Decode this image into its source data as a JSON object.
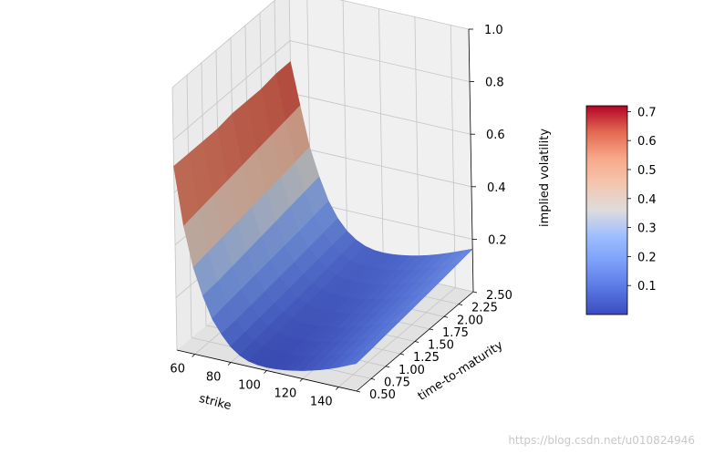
{
  "chart_data": {
    "type": "surface3d",
    "title": "",
    "xlabel": "strike",
    "ylabel": "time-to-maturity",
    "zlabel": "implied volatility",
    "xlim": [
      50,
      150
    ],
    "ylim": [
      0.5,
      2.5
    ],
    "zlim": [
      0.0,
      1.0
    ],
    "x_ticks": [
      60,
      80,
      100,
      120,
      140
    ],
    "x_tick_labels": [
      "60",
      "80",
      "100",
      "120",
      "140"
    ],
    "y_ticks": [
      0.5,
      0.75,
      1.0,
      1.25,
      1.5,
      1.75,
      2.0,
      2.25,
      2.5
    ],
    "y_tick_labels": [
      "0.50",
      "0.75",
      "1.00",
      "1.25",
      "1.50",
      "1.75",
      "2.00",
      "2.25",
      "2.50"
    ],
    "z_ticks": [
      0.2,
      0.4,
      0.6,
      0.8,
      1.0
    ],
    "z_tick_labels": [
      "0.2",
      "0.4",
      "0.6",
      "0.8",
      "1.0"
    ],
    "colormap": "coolwarm",
    "colorbar": {
      "min": 0.0,
      "max": 0.72,
      "ticks": [
        0.1,
        0.2,
        0.3,
        0.4,
        0.5,
        0.6,
        0.7
      ],
      "tick_labels": [
        "0.1",
        "0.2",
        "0.3",
        "0.4",
        "0.5",
        "0.6",
        "0.7"
      ]
    },
    "grid": true,
    "surface": {
      "strike": [
        50,
        55,
        60,
        65,
        70,
        75,
        80,
        85,
        90,
        95,
        100,
        105,
        110,
        115,
        120,
        125,
        130,
        135,
        140,
        145,
        150
      ],
      "maturity": [
        0.5,
        0.75,
        1.0,
        1.25,
        1.5,
        1.75,
        2.0,
        2.25,
        2.5
      ],
      "implied_volatility": [
        [
          0.7,
          0.48,
          0.33,
          0.23,
          0.15,
          0.1,
          0.06,
          0.035,
          0.02,
          0.014,
          0.012,
          0.014,
          0.018,
          0.024,
          0.031,
          0.04,
          0.05,
          0.062,
          0.075,
          0.09,
          0.105
        ],
        [
          0.7,
          0.49,
          0.34,
          0.235,
          0.16,
          0.105,
          0.068,
          0.043,
          0.028,
          0.02,
          0.018,
          0.02,
          0.024,
          0.03,
          0.038,
          0.047,
          0.058,
          0.07,
          0.083,
          0.097,
          0.11
        ],
        [
          0.7,
          0.5,
          0.35,
          0.245,
          0.168,
          0.112,
          0.075,
          0.05,
          0.035,
          0.027,
          0.025,
          0.027,
          0.031,
          0.037,
          0.045,
          0.054,
          0.065,
          0.077,
          0.09,
          0.104,
          0.118
        ],
        [
          0.7,
          0.51,
          0.36,
          0.255,
          0.176,
          0.12,
          0.082,
          0.057,
          0.042,
          0.034,
          0.032,
          0.034,
          0.038,
          0.044,
          0.052,
          0.061,
          0.072,
          0.084,
          0.097,
          0.111,
          0.125
        ],
        [
          0.71,
          0.52,
          0.37,
          0.265,
          0.184,
          0.128,
          0.09,
          0.064,
          0.049,
          0.041,
          0.039,
          0.041,
          0.045,
          0.051,
          0.059,
          0.068,
          0.079,
          0.091,
          0.104,
          0.118,
          0.132
        ],
        [
          0.71,
          0.53,
          0.38,
          0.275,
          0.192,
          0.136,
          0.098,
          0.072,
          0.056,
          0.048,
          0.046,
          0.048,
          0.052,
          0.058,
          0.066,
          0.075,
          0.086,
          0.098,
          0.111,
          0.125,
          0.139
        ],
        [
          0.71,
          0.54,
          0.39,
          0.285,
          0.2,
          0.144,
          0.106,
          0.08,
          0.064,
          0.056,
          0.054,
          0.056,
          0.06,
          0.066,
          0.074,
          0.083,
          0.094,
          0.106,
          0.119,
          0.133,
          0.147
        ],
        [
          0.72,
          0.55,
          0.4,
          0.295,
          0.21,
          0.153,
          0.114,
          0.088,
          0.072,
          0.064,
          0.062,
          0.064,
          0.068,
          0.074,
          0.082,
          0.091,
          0.102,
          0.114,
          0.127,
          0.141,
          0.155
        ],
        [
          0.72,
          0.56,
          0.41,
          0.305,
          0.22,
          0.162,
          0.122,
          0.096,
          0.08,
          0.072,
          0.07,
          0.072,
          0.076,
          0.082,
          0.09,
          0.099,
          0.11,
          0.122,
          0.135,
          0.149,
          0.163
        ]
      ]
    }
  },
  "watermark": "https://blog.csdn.net/u010824946"
}
